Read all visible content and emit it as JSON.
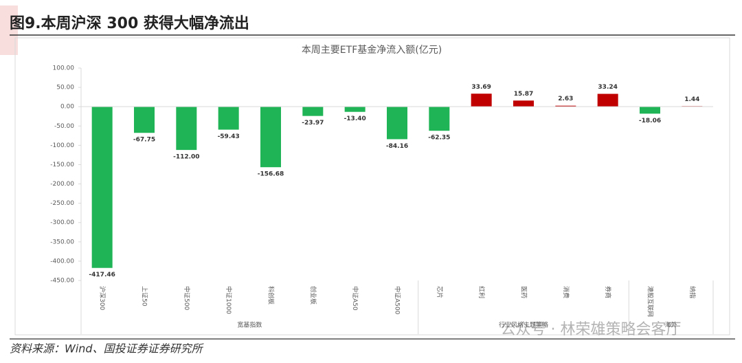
{
  "header": {
    "title": "图9.本周沪深 300 获得大幅净流出"
  },
  "chart_data": {
    "type": "bar",
    "title": "本周主要ETF基金净流入额(亿元)",
    "categories": [
      "沪深300",
      "上证50",
      "中证500",
      "中证1000",
      "科创板",
      "创业板",
      "中证A50",
      "中证A500",
      "芯片",
      "红利",
      "医药",
      "消费",
      "券商",
      "港股互联网",
      "纳指"
    ],
    "values": [
      -417.46,
      -67.75,
      -112,
      -59.43,
      -156.68,
      -23.97,
      -13.4,
      -84.16,
      -62.35,
      33.69,
      15.87,
      2.63,
      33.24,
      -18.06,
      1.44
    ],
    "value_labels": [
      "-417.46",
      "-67.75",
      "-112.00",
      "-59.43",
      "-156.68",
      "-23.97",
      "-13.40",
      "-84.16",
      "-62.35",
      "33.69",
      "15.87",
      "2.63",
      "33.24",
      "-18.06",
      "1.44"
    ],
    "colors": [
      "#1fb455",
      "#1fb455",
      "#1fb455",
      "#1fb455",
      "#1fb455",
      "#1fb455",
      "#1fb455",
      "#1fb455",
      "#1fb455",
      "#c00000",
      "#c00000",
      "#c00000",
      "#c00000",
      "#1fb455",
      "#c00000"
    ],
    "groups": [
      "宽基指数",
      "行业风格主题策略",
      "海外"
    ],
    "ylim": [
      -450,
      100
    ],
    "yticks": [
      {
        "value": -450,
        "label": "-450.00"
      },
      {
        "value": -400,
        "label": "-400.00"
      },
      {
        "value": -350,
        "label": "-350.00"
      },
      {
        "value": -300,
        "label": "-300.00"
      },
      {
        "value": -250,
        "label": "-250.00"
      },
      {
        "value": -200,
        "label": "-200.00"
      },
      {
        "value": -150,
        "label": "-150.00"
      },
      {
        "value": -100,
        "label": "-100.00"
      },
      {
        "value": -50,
        "label": "-50.00"
      },
      {
        "value": 0,
        "label": "0.00"
      },
      {
        "value": 50,
        "label": "50.00"
      },
      {
        "value": 100,
        "label": "100.00"
      }
    ]
  },
  "watermark": "公众号 · 林荣雄策略会客厅",
  "source": "资料来源：Wind、国投证券证券研究所"
}
